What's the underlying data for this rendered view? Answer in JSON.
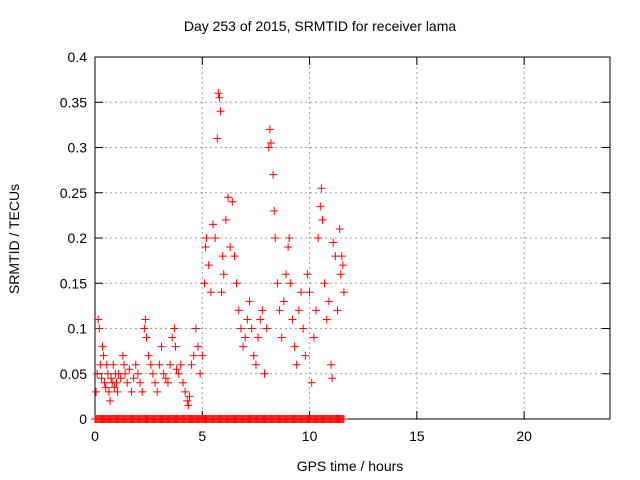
{
  "chart_data": {
    "type": "scatter",
    "title": "Day 253 of 2015, SRMTID for receiver lama",
    "xlabel": "GPS time / hours",
    "ylabel": "SRMTID / TECUs",
    "xlim": [
      0,
      24
    ],
    "ylim": [
      0,
      0.4
    ],
    "x_ticks": [
      "0",
      "5",
      "10",
      "15",
      "20"
    ],
    "x_tick_values": [
      0,
      5,
      10,
      15,
      20
    ],
    "y_ticks": [
      "0",
      "0.05",
      "0.1",
      "0.15",
      "0.2",
      "0.25",
      "0.3",
      "0.35",
      "0.4"
    ],
    "y_tick_values": [
      0,
      0.05,
      0.1,
      0.15,
      0.2,
      0.25,
      0.3,
      0.35,
      0.4
    ],
    "grid": true,
    "marker": "+",
    "color": "#ff0000",
    "series": [
      {
        "name": "SRMTID",
        "points": [
          [
            0.05,
            0.03
          ],
          [
            0.1,
            0.05
          ],
          [
            0.15,
            0.11
          ],
          [
            0.2,
            0.1
          ],
          [
            0.25,
            0.06
          ],
          [
            0.3,
            0.045
          ],
          [
            0.35,
            0.08
          ],
          [
            0.4,
            0.07
          ],
          [
            0.45,
            0.04
          ],
          [
            0.5,
            0.035
          ],
          [
            0.55,
            0.06
          ],
          [
            0.6,
            0.05
          ],
          [
            0.65,
            0.03
          ],
          [
            0.7,
            0.02
          ],
          [
            0.75,
            0.045
          ],
          [
            0.8,
            0.04
          ],
          [
            0.85,
            0.06
          ],
          [
            0.9,
            0.035
          ],
          [
            0.95,
            0.05
          ],
          [
            1.0,
            0.04
          ],
          [
            1.05,
            0.03
          ],
          [
            1.1,
            0.05
          ],
          [
            1.2,
            0.045
          ],
          [
            1.3,
            0.07
          ],
          [
            1.35,
            0.06
          ],
          [
            1.4,
            0.05
          ],
          [
            1.5,
            0.04
          ],
          [
            1.6,
            0.055
          ],
          [
            1.7,
            0.03
          ],
          [
            1.8,
            0.045
          ],
          [
            1.9,
            0.06
          ],
          [
            2.0,
            0.05
          ],
          [
            2.1,
            0.04
          ],
          [
            2.2,
            0.03
          ],
          [
            2.3,
            0.1
          ],
          [
            2.35,
            0.11
          ],
          [
            2.4,
            0.09
          ],
          [
            2.5,
            0.07
          ],
          [
            2.6,
            0.06
          ],
          [
            2.7,
            0.05
          ],
          [
            2.8,
            0.04
          ],
          [
            2.9,
            0.03
          ],
          [
            3.0,
            0.06
          ],
          [
            3.1,
            0.08
          ],
          [
            3.2,
            0.05
          ],
          [
            3.3,
            0.045
          ],
          [
            3.4,
            0.04
          ],
          [
            3.5,
            0.06
          ],
          [
            3.6,
            0.09
          ],
          [
            3.7,
            0.1
          ],
          [
            3.75,
            0.08
          ],
          [
            3.8,
            0.055
          ],
          [
            3.9,
            0.05
          ],
          [
            4.0,
            0.06
          ],
          [
            4.1,
            0.04
          ],
          [
            4.2,
            0.03
          ],
          [
            4.3,
            0.02
          ],
          [
            4.35,
            0.015
          ],
          [
            4.4,
            0.025
          ],
          [
            4.5,
            0.06
          ],
          [
            4.6,
            0.07
          ],
          [
            4.7,
            0.1
          ],
          [
            4.8,
            0.08
          ],
          [
            4.9,
            0.05
          ],
          [
            5.0,
            0.07
          ],
          [
            5.1,
            0.15
          ],
          [
            5.15,
            0.19
          ],
          [
            5.2,
            0.2
          ],
          [
            5.3,
            0.17
          ],
          [
            5.4,
            0.14
          ],
          [
            5.5,
            0.215
          ],
          [
            5.6,
            0.2
          ],
          [
            5.7,
            0.31
          ],
          [
            5.75,
            0.36
          ],
          [
            5.8,
            0.355
          ],
          [
            5.85,
            0.34
          ],
          [
            5.9,
            0.14
          ],
          [
            5.95,
            0.18
          ],
          [
            6.0,
            0.16
          ],
          [
            6.1,
            0.22
          ],
          [
            6.2,
            0.245
          ],
          [
            6.3,
            0.19
          ],
          [
            6.4,
            0.24
          ],
          [
            6.5,
            0.18
          ],
          [
            6.6,
            0.15
          ],
          [
            6.7,
            0.12
          ],
          [
            6.8,
            0.1
          ],
          [
            6.9,
            0.08
          ],
          [
            7.0,
            0.09
          ],
          [
            7.1,
            0.11
          ],
          [
            7.2,
            0.13
          ],
          [
            7.3,
            0.1
          ],
          [
            7.4,
            0.07
          ],
          [
            7.5,
            0.06
          ],
          [
            7.6,
            0.09
          ],
          [
            7.7,
            0.11
          ],
          [
            7.8,
            0.12
          ],
          [
            7.9,
            0.05
          ],
          [
            8.0,
            0.1
          ],
          [
            8.1,
            0.3
          ],
          [
            8.15,
            0.32
          ],
          [
            8.2,
            0.305
          ],
          [
            8.3,
            0.27
          ],
          [
            8.35,
            0.23
          ],
          [
            8.4,
            0.2
          ],
          [
            8.5,
            0.15
          ],
          [
            8.6,
            0.12
          ],
          [
            8.7,
            0.09
          ],
          [
            8.8,
            0.13
          ],
          [
            8.9,
            0.16
          ],
          [
            9.0,
            0.19
          ],
          [
            9.05,
            0.2
          ],
          [
            9.1,
            0.15
          ],
          [
            9.2,
            0.11
          ],
          [
            9.3,
            0.08
          ],
          [
            9.4,
            0.06
          ],
          [
            9.5,
            0.12
          ],
          [
            9.6,
            0.14
          ],
          [
            9.7,
            0.1
          ],
          [
            9.8,
            0.07
          ],
          [
            9.9,
            0.16
          ],
          [
            10.0,
            0.14
          ],
          [
            10.1,
            0.04
          ],
          [
            10.2,
            0.09
          ],
          [
            10.3,
            0.12
          ],
          [
            10.4,
            0.2
          ],
          [
            10.5,
            0.235
          ],
          [
            10.55,
            0.255
          ],
          [
            10.6,
            0.22
          ],
          [
            10.7,
            0.15
          ],
          [
            10.8,
            0.11
          ],
          [
            10.9,
            0.13
          ],
          [
            11.0,
            0.06
          ],
          [
            11.05,
            0.045
          ],
          [
            11.1,
            0.195
          ],
          [
            11.2,
            0.18
          ],
          [
            11.3,
            0.12
          ],
          [
            11.4,
            0.21
          ],
          [
            11.45,
            0.16
          ],
          [
            11.5,
            0.18
          ],
          [
            11.55,
            0.17
          ],
          [
            11.6,
            0.14
          ]
        ],
        "zero_points_x": [
          0.0,
          11.6
        ]
      }
    ]
  }
}
